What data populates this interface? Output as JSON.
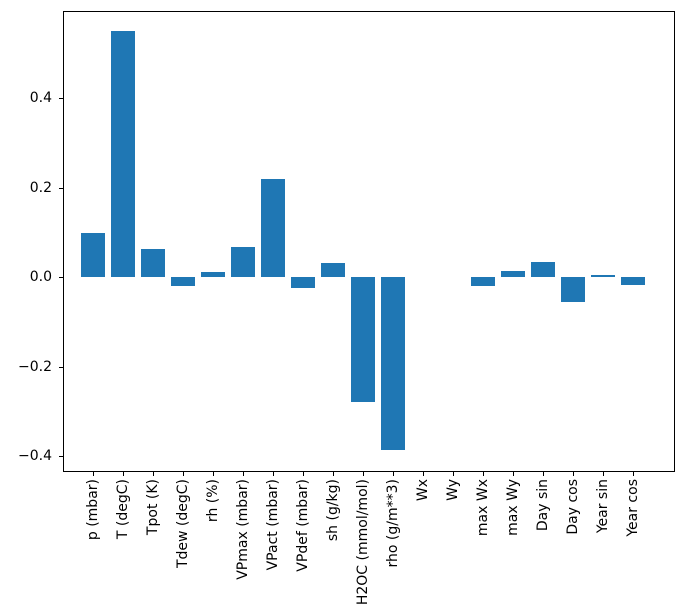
{
  "chart_data": {
    "type": "bar",
    "title": "",
    "xlabel": "",
    "ylabel": "",
    "categories": [
      "p (mbar)",
      "T (degC)",
      "Tpot (K)",
      "Tdew (degC)",
      "rh (%)",
      "VPmax (mbar)",
      "VPact (mbar)",
      "VPdef (mbar)",
      "sh (g/kg)",
      "H2OC (mmol/mol)",
      "rho (g/m**3)",
      "Wx",
      "Wy",
      "max Wx",
      "max Wy",
      "Day sin",
      "Day cos",
      "Year sin",
      "Year cos"
    ],
    "values": [
      0.099,
      0.55,
      0.063,
      -0.02,
      0.012,
      0.067,
      0.219,
      -0.025,
      0.031,
      -0.279,
      -0.385,
      0.0,
      0.0,
      -0.019,
      0.014,
      0.034,
      -0.055,
      0.004,
      -0.018
    ],
    "ylim": [
      -0.435,
      0.594
    ],
    "yticks": [
      -0.4,
      -0.2,
      0.0,
      0.2,
      0.4
    ],
    "ytick_labels": [
      "−0.4",
      "−0.2",
      "0.0",
      "0.2",
      "0.4"
    ],
    "bar_color": "#1f77b4",
    "axis_color": "#000000",
    "background_color": "#ffffff",
    "grid": false,
    "legend": null,
    "x_tick_rotation": 90
  }
}
